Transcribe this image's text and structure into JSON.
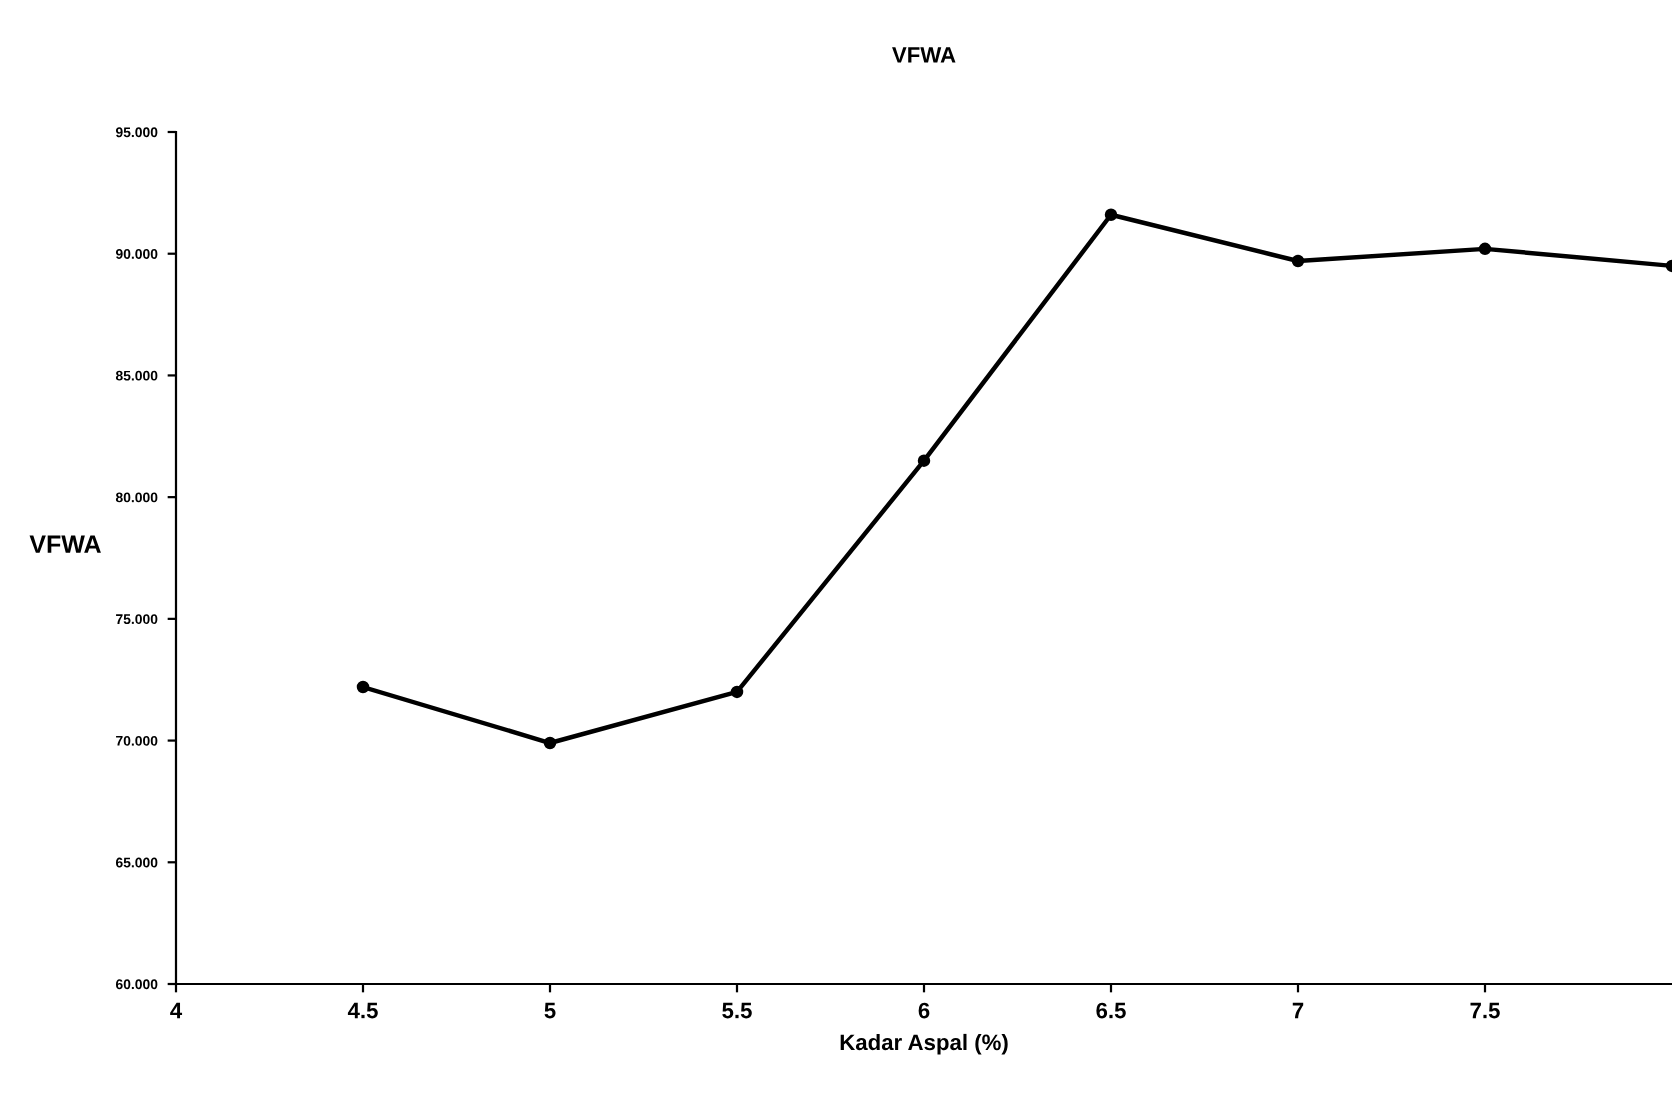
{
  "chart_data": {
    "type": "line",
    "title": "VFWA",
    "xlabel": "Kadar Aspal (%)",
    "ylabel": "VFWA",
    "x": [
      4.5,
      5,
      5.5,
      6,
      6.5,
      7,
      7.5,
      8
    ],
    "series": [
      {
        "color": "#000000",
        "values": [
          72.2,
          69.9,
          72.0,
          81.5,
          91.6,
          89.7,
          90.2,
          89.5
        ]
      }
    ],
    "xlim": [
      4,
      8
    ],
    "xticks": [
      4,
      4.5,
      5,
      5.5,
      6,
      6.5,
      7,
      7.5
    ],
    "ylim": [
      60,
      95
    ],
    "yticks": [
      {
        "value": 60,
        "label": "60.000"
      },
      {
        "value": 65,
        "label": "65.000"
      },
      {
        "value": 70,
        "label": "70.000"
      },
      {
        "value": 75,
        "label": "75.000"
      },
      {
        "value": 80,
        "label": "80.000"
      },
      {
        "value": 85,
        "label": "85.000"
      },
      {
        "value": 90,
        "label": "90.000"
      },
      {
        "value": 95,
        "label": "95.000"
      }
    ],
    "marker": "circle",
    "line_style": "solid",
    "grid": false,
    "legend": false
  }
}
